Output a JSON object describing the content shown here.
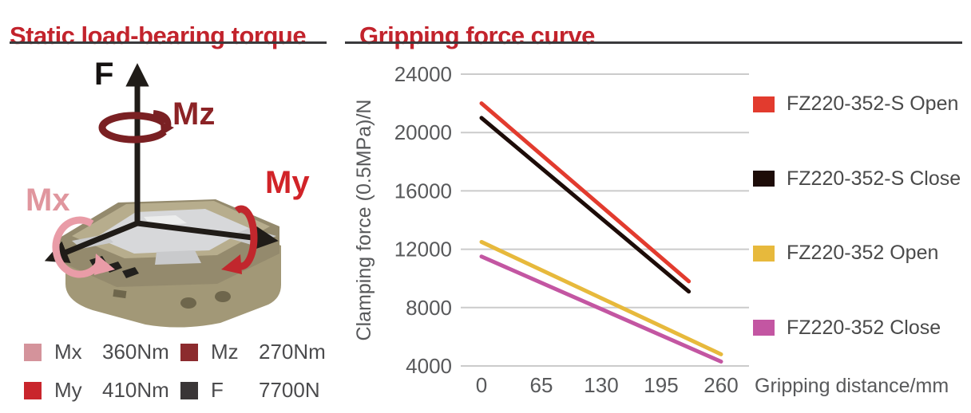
{
  "accent_color": "#c2232c",
  "left_panel": {
    "title": "Static load-bearing torque",
    "diagram": {
      "force_label": "F",
      "mx_label": "Mx",
      "my_label": "My",
      "mz_label": "Mz"
    },
    "legend": [
      {
        "label": "Mx",
        "value": "360Nm",
        "color": "#d4939b"
      },
      {
        "label": "Mz",
        "value": "270Nm",
        "color": "#8c2b2e"
      },
      {
        "label": "My",
        "value": "410Nm",
        "color": "#c9252c"
      },
      {
        "label": "F",
        "value": "7700N",
        "color": "#3a3637"
      }
    ]
  },
  "right_panel": {
    "title": "Gripping force curve"
  },
  "chart_data": {
    "type": "line",
    "title": "Gripping force curve",
    "xlabel": "Gripping distance/mm",
    "ylabel": "Clamping force (0.5MPa)/N",
    "x_ticks": [
      0,
      65,
      130,
      195,
      260
    ],
    "y_ticks": [
      4000,
      8000,
      12000,
      16000,
      20000,
      24000
    ],
    "xlim": [
      0,
      290
    ],
    "ylim": [
      4000,
      24000
    ],
    "grid": true,
    "legend_position": "right",
    "series": [
      {
        "name": "FZ220-352-S Open",
        "color": "#e23b2e",
        "x": [
          0,
          225
        ],
        "y": [
          22000,
          9800
        ]
      },
      {
        "name": "FZ220-352-S Close",
        "color": "#1d0c08",
        "x": [
          0,
          225
        ],
        "y": [
          21000,
          9100
        ]
      },
      {
        "name": "FZ220-352 Open",
        "color": "#e7b93c",
        "x": [
          0,
          260
        ],
        "y": [
          12500,
          4800
        ]
      },
      {
        "name": "FZ220-352 Close",
        "color": "#c356a2",
        "x": [
          0,
          260
        ],
        "y": [
          11500,
          4300
        ]
      }
    ]
  }
}
